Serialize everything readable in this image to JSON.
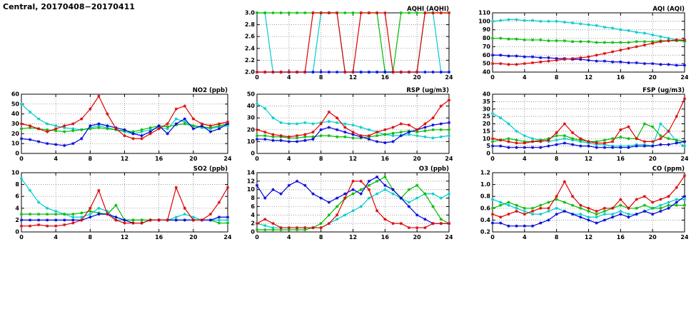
{
  "page": {
    "title": "Central, 20170408−20170411"
  },
  "colors": {
    "red": "#dd0000",
    "green": "#00bb00",
    "cyan": "#00cccc",
    "blue": "#0000dd"
  },
  "chart_data": [
    {
      "id": "aqhi",
      "type": "line",
      "title": "AQHI (AQHI)",
      "xlim": [
        0,
        24
      ],
      "xticks": [
        0,
        4,
        8,
        12,
        16,
        20,
        24
      ],
      "ylim": [
        2.0,
        3.0
      ],
      "ytick_step": 0.2,
      "ydecimals": 1,
      "series": [
        {
          "name": "cyan",
          "color": "#00cccc",
          "values": [
            3,
            3,
            2,
            2,
            2,
            2,
            2,
            2,
            3,
            3,
            3,
            2,
            2,
            2,
            2,
            2,
            2,
            2,
            2,
            2,
            2,
            3,
            3,
            2,
            2
          ]
        },
        {
          "name": "green",
          "color": "#00bb00",
          "values": [
            3,
            3,
            3,
            3,
            3,
            3,
            3,
            3,
            3,
            3,
            3,
            3,
            3,
            3,
            3,
            3,
            2,
            2,
            3,
            3,
            3,
            3,
            3,
            3,
            3
          ]
        },
        {
          "name": "blue",
          "color": "#0000dd",
          "values": [
            2,
            2,
            2,
            2,
            2,
            2,
            2,
            2,
            2,
            2,
            2,
            2,
            2,
            2,
            2,
            2,
            2,
            2,
            2,
            2,
            2,
            2,
            2,
            2,
            2
          ]
        },
        {
          "name": "red",
          "color": "#dd0000",
          "values": [
            2,
            2,
            2,
            2,
            2,
            2,
            2,
            3,
            3,
            3,
            3,
            2,
            2,
            3,
            3,
            3,
            3,
            2,
            2,
            2,
            2,
            3,
            3,
            3,
            3
          ]
        }
      ]
    },
    {
      "id": "aqi",
      "type": "line",
      "title": "AQI (AQI)",
      "xlim": [
        0,
        24
      ],
      "xticks": [
        0,
        4,
        8,
        12,
        16,
        20,
        24
      ],
      "ylim": [
        40,
        110
      ],
      "ytick_step": 10,
      "ydecimals": 0,
      "series": [
        {
          "name": "cyan",
          "color": "#00cccc",
          "values": [
            100,
            101,
            102,
            102,
            101,
            101,
            100,
            100,
            100,
            99,
            98,
            97,
            96,
            95,
            93,
            92,
            90,
            89,
            87,
            86,
            84,
            82,
            80,
            78,
            76
          ]
        },
        {
          "name": "green",
          "color": "#00bb00",
          "values": [
            80,
            80,
            79,
            79,
            78,
            78,
            78,
            77,
            77,
            77,
            76,
            76,
            76,
            75,
            75,
            75,
            75,
            75,
            76,
            76,
            76,
            77,
            77,
            77,
            77
          ]
        },
        {
          "name": "blue",
          "color": "#0000dd",
          "values": [
            60,
            60,
            59,
            59,
            58,
            58,
            57,
            57,
            56,
            56,
            55,
            55,
            54,
            53,
            53,
            52,
            52,
            51,
            51,
            50,
            50,
            49,
            49,
            48,
            48
          ]
        },
        {
          "name": "red",
          "color": "#dd0000",
          "values": [
            50,
            50,
            49,
            49,
            50,
            51,
            52,
            53,
            54,
            55,
            56,
            57,
            58,
            60,
            62,
            64,
            66,
            68,
            70,
            72,
            74,
            76,
            77,
            78,
            78
          ]
        }
      ]
    },
    {
      "id": "no2",
      "type": "line",
      "title": "NO2 (ppb)",
      "xlim": [
        0,
        24
      ],
      "xticks": [
        0,
        4,
        8,
        12,
        16,
        20,
        24
      ],
      "ylim": [
        0,
        60
      ],
      "ytick_step": 10,
      "ydecimals": 0,
      "series": [
        {
          "name": "cyan",
          "color": "#00cccc",
          "values": [
            50,
            42,
            35,
            30,
            28,
            26,
            25,
            24,
            26,
            28,
            26,
            24,
            22,
            20,
            22,
            24,
            26,
            25,
            35,
            32,
            28,
            26,
            25,
            27,
            28
          ]
        },
        {
          "name": "green",
          "color": "#00bb00",
          "values": [
            25,
            26,
            25,
            24,
            23,
            22,
            23,
            24,
            25,
            26,
            25,
            24,
            23,
            22,
            24,
            26,
            28,
            27,
            29,
            30,
            28,
            27,
            26,
            28,
            30
          ]
        },
        {
          "name": "blue",
          "color": "#0000dd",
          "values": [
            15,
            14,
            12,
            10,
            9,
            8,
            10,
            15,
            28,
            30,
            28,
            26,
            24,
            20,
            18,
            22,
            28,
            20,
            30,
            35,
            25,
            28,
            22,
            25,
            30
          ]
        },
        {
          "name": "red",
          "color": "#dd0000",
          "values": [
            30,
            28,
            25,
            22,
            25,
            28,
            30,
            35,
            45,
            58,
            40,
            25,
            18,
            15,
            15,
            20,
            25,
            30,
            45,
            48,
            35,
            30,
            28,
            30,
            32
          ]
        }
      ]
    },
    {
      "id": "rsp",
      "type": "line",
      "title": "RSP (ug/m3)",
      "xlim": [
        0,
        24
      ],
      "xticks": [
        0,
        4,
        8,
        12,
        16,
        20,
        24
      ],
      "ylim": [
        0,
        50
      ],
      "ytick_step": 10,
      "ydecimals": 0,
      "series": [
        {
          "name": "cyan",
          "color": "#00cccc",
          "values": [
            42,
            38,
            30,
            26,
            25,
            25,
            26,
            25,
            26,
            27,
            26,
            25,
            24,
            22,
            20,
            18,
            16,
            15,
            15,
            16,
            15,
            14,
            13,
            14,
            15
          ]
        },
        {
          "name": "green",
          "color": "#00bb00",
          "values": [
            15,
            15,
            14,
            14,
            13,
            13,
            14,
            14,
            15,
            15,
            14,
            14,
            13,
            13,
            14,
            15,
            16,
            17,
            18,
            19,
            18,
            19,
            20,
            20,
            20
          ]
        },
        {
          "name": "blue",
          "color": "#0000dd",
          "values": [
            12,
            12,
            11,
            11,
            10,
            10,
            11,
            12,
            20,
            22,
            20,
            18,
            16,
            14,
            12,
            10,
            9,
            10,
            15,
            18,
            20,
            22,
            24,
            25,
            26
          ]
        },
        {
          "name": "red",
          "color": "#dd0000",
          "values": [
            20,
            18,
            16,
            15,
            14,
            15,
            16,
            18,
            25,
            35,
            30,
            22,
            18,
            15,
            15,
            18,
            20,
            22,
            25,
            24,
            20,
            25,
            30,
            40,
            45
          ]
        }
      ]
    },
    {
      "id": "fsp",
      "type": "line",
      "title": "FSP (ug/m3)",
      "xlim": [
        0,
        24
      ],
      "xticks": [
        0,
        4,
        8,
        12,
        16,
        20,
        24
      ],
      "ylim": [
        0,
        40
      ],
      "ytick_step": 5,
      "ydecimals": 0,
      "series": [
        {
          "name": "cyan",
          "color": "#00cccc",
          "values": [
            27,
            24,
            20,
            15,
            12,
            10,
            9,
            8,
            9,
            10,
            9,
            8,
            7,
            6,
            6,
            5,
            5,
            5,
            6,
            6,
            5,
            20,
            15,
            8,
            5
          ]
        },
        {
          "name": "green",
          "color": "#00bb00",
          "values": [
            8,
            9,
            10,
            9,
            8,
            8,
            9,
            10,
            12,
            12,
            10,
            9,
            8,
            8,
            9,
            10,
            11,
            10,
            10,
            20,
            18,
            12,
            10,
            9,
            8
          ]
        },
        {
          "name": "blue",
          "color": "#0000dd",
          "values": [
            5,
            5,
            4,
            4,
            4,
            4,
            4,
            5,
            6,
            7,
            6,
            5,
            5,
            4,
            4,
            4,
            4,
            4,
            5,
            5,
            5,
            6,
            6,
            7,
            8
          ]
        },
        {
          "name": "red",
          "color": "#dd0000",
          "values": [
            10,
            9,
            8,
            7,
            7,
            8,
            8,
            9,
            14,
            20,
            14,
            10,
            8,
            7,
            7,
            8,
            16,
            18,
            10,
            8,
            8,
            10,
            15,
            25,
            37
          ]
        }
      ]
    },
    {
      "id": "so2",
      "type": "line",
      "title": "SO2 (ppb)",
      "xlim": [
        0,
        24
      ],
      "xticks": [
        0,
        4,
        8,
        12,
        16,
        20,
        24
      ],
      "ylim": [
        0,
        10
      ],
      "ytick_step": 2,
      "ydecimals": 0,
      "series": [
        {
          "name": "cyan",
          "color": "#00cccc",
          "values": [
            9,
            7,
            5,
            4,
            3.5,
            3,
            2.5,
            2.5,
            3,
            4,
            3.5,
            2,
            2,
            2,
            2,
            2,
            2,
            2,
            2.5,
            3,
            2.5,
            2,
            2,
            2,
            2
          ]
        },
        {
          "name": "green",
          "color": "#00bb00",
          "values": [
            3,
            3,
            3,
            3,
            3,
            3,
            3,
            3.2,
            3.5,
            3.2,
            3,
            4.5,
            2,
            2,
            2,
            2,
            2,
            2,
            2,
            2,
            2,
            2,
            2,
            1.5,
            1.5
          ]
        },
        {
          "name": "blue",
          "color": "#0000dd",
          "values": [
            2,
            2,
            2,
            2,
            2,
            2,
            2,
            2,
            2.5,
            3,
            3,
            2.5,
            2,
            1.5,
            1.5,
            2,
            2,
            2,
            2,
            2,
            2,
            2,
            2,
            2.5,
            2.5
          ]
        },
        {
          "name": "red",
          "color": "#dd0000",
          "values": [
            1,
            1,
            1.2,
            1,
            1,
            1.2,
            1.5,
            2,
            4,
            7,
            3,
            2,
            1.5,
            1.5,
            1.5,
            2,
            2,
            2,
            7.5,
            4,
            2,
            2,
            3,
            5,
            7.5
          ]
        }
      ]
    },
    {
      "id": "o3",
      "type": "line",
      "title": "O3 (ppb)",
      "xlim": [
        0,
        24
      ],
      "xticks": [
        0,
        4,
        8,
        12,
        16,
        20,
        24
      ],
      "ylim": [
        0,
        14
      ],
      "ytick_step": 2,
      "ydecimals": 0,
      "series": [
        {
          "name": "cyan",
          "color": "#00cccc",
          "values": [
            2,
            1.5,
            1,
            1,
            1,
            1,
            1,
            1,
            1,
            2,
            3,
            4,
            5,
            6,
            8,
            9,
            10,
            9,
            8,
            7,
            8,
            9,
            9,
            8,
            9
          ]
        },
        {
          "name": "green",
          "color": "#00bb00",
          "values": [
            0.5,
            0.5,
            0.5,
            0.5,
            0.5,
            0.5,
            0.5,
            1,
            2,
            4,
            6,
            8,
            9,
            10,
            11,
            12,
            13,
            10,
            8,
            10,
            11,
            9,
            6,
            3,
            2
          ]
        },
        {
          "name": "blue",
          "color": "#0000dd",
          "values": [
            11,
            8,
            10,
            9,
            11,
            12,
            11,
            9,
            8,
            7,
            8,
            9,
            10,
            9,
            12,
            13,
            11,
            10,
            8,
            6,
            4,
            3,
            2,
            2,
            2
          ]
        },
        {
          "name": "red",
          "color": "#dd0000",
          "values": [
            2,
            3,
            2,
            1,
            1,
            1,
            1,
            1,
            1,
            2,
            4,
            8,
            12,
            12,
            10,
            5,
            3,
            2,
            2,
            1,
            1,
            1,
            2,
            2,
            2
          ]
        }
      ]
    },
    {
      "id": "co",
      "type": "line",
      "title": "CO (ppm)",
      "xlim": [
        0,
        24
      ],
      "xticks": [
        0,
        4,
        8,
        12,
        16,
        20,
        24
      ],
      "ylim": [
        0.2,
        1.2
      ],
      "ytick_step": 0.2,
      "ydecimals": 1,
      "series": [
        {
          "name": "cyan",
          "color": "#00cccc",
          "values": [
            0.75,
            0.7,
            0.65,
            0.6,
            0.55,
            0.5,
            0.5,
            0.55,
            0.6,
            0.55,
            0.5,
            0.5,
            0.45,
            0.45,
            0.5,
            0.5,
            0.55,
            0.5,
            0.5,
            0.55,
            0.6,
            0.65,
            0.7,
            0.75,
            0.75
          ]
        },
        {
          "name": "green",
          "color": "#00bb00",
          "values": [
            0.6,
            0.65,
            0.7,
            0.65,
            0.6,
            0.6,
            0.65,
            0.7,
            0.75,
            0.7,
            0.65,
            0.6,
            0.55,
            0.5,
            0.55,
            0.6,
            0.65,
            0.6,
            0.6,
            0.65,
            0.6,
            0.6,
            0.65,
            0.65,
            0.65
          ]
        },
        {
          "name": "blue",
          "color": "#0000dd",
          "values": [
            0.35,
            0.35,
            0.3,
            0.3,
            0.3,
            0.3,
            0.35,
            0.4,
            0.5,
            0.55,
            0.5,
            0.45,
            0.4,
            0.35,
            0.4,
            0.45,
            0.5,
            0.45,
            0.5,
            0.55,
            0.5,
            0.55,
            0.6,
            0.7,
            0.8
          ]
        },
        {
          "name": "red",
          "color": "#dd0000",
          "values": [
            0.5,
            0.45,
            0.5,
            0.55,
            0.5,
            0.55,
            0.6,
            0.6,
            0.8,
            1.05,
            0.8,
            0.65,
            0.6,
            0.55,
            0.6,
            0.6,
            0.75,
            0.6,
            0.75,
            0.8,
            0.7,
            0.75,
            0.8,
            0.95,
            1.15
          ]
        }
      ]
    }
  ]
}
